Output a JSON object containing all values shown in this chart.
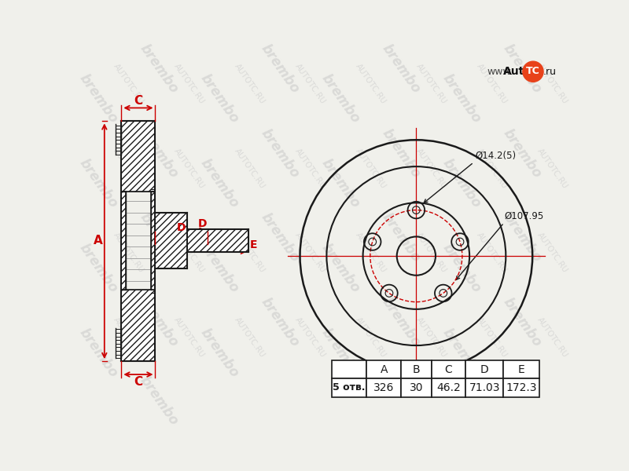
{
  "bg_color": "#f0f0eb",
  "line_color": "#1a1a1a",
  "red_color": "#cc0000",
  "table_headers": [
    "",
    "A",
    "B",
    "C",
    "D",
    "E"
  ],
  "bolt_label": "5 отв.",
  "dim_A": "326",
  "dim_B": "30",
  "dim_C": "46.2",
  "dim_D": "71.03",
  "dim_E": "172.3",
  "bolt_circle_label": "Ø107.95",
  "bolt_hole_label": "Ø14.2(5)",
  "watermark_url": "www.AutoTC.ru"
}
